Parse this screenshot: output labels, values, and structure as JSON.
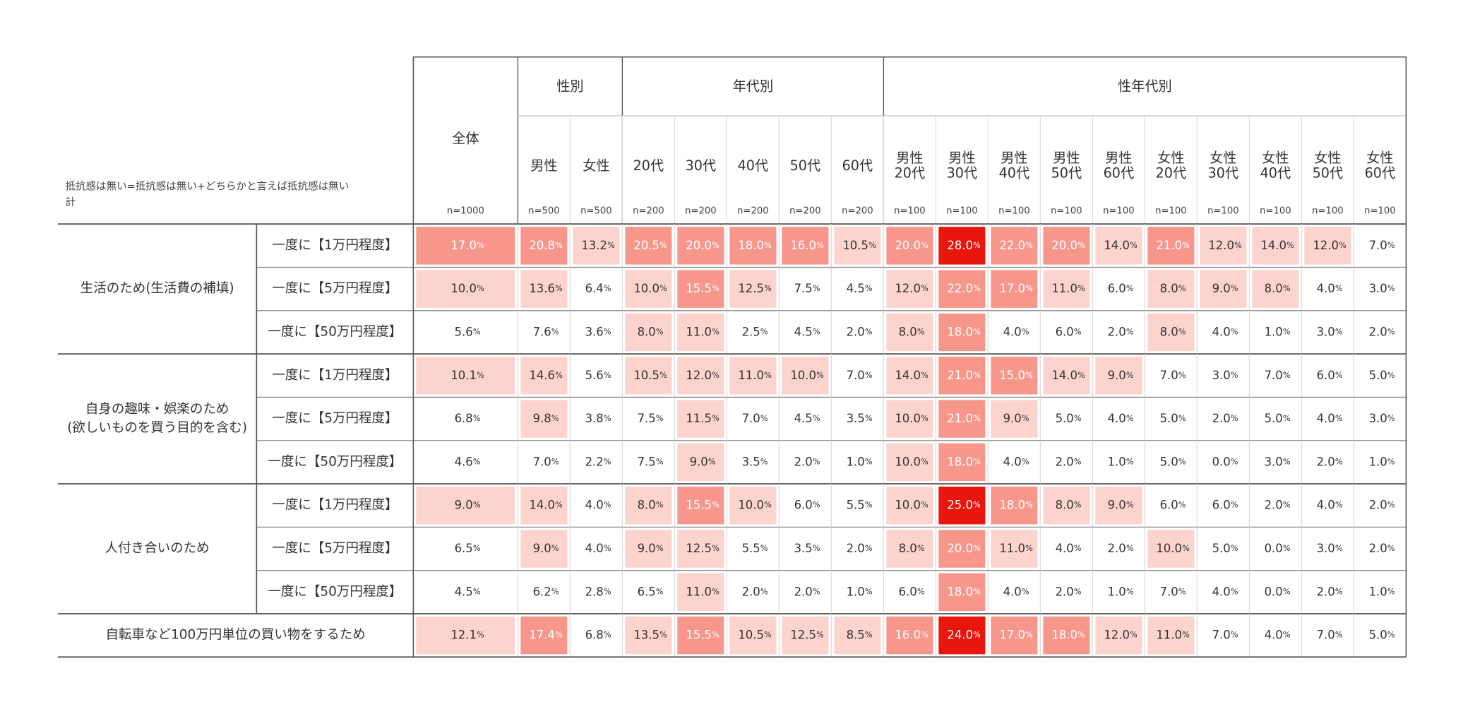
{
  "note": [
    "抵抗感は無い=抵抗感は無い+どちらかと言えば抵抗感は無い",
    "計"
  ],
  "unit": "%",
  "total": {
    "label": [
      "全体"
    ],
    "n": "n=1000"
  },
  "groups": [
    {
      "label": "性別",
      "columns": [
        {
          "label": [
            "男性"
          ],
          "n": "n=500"
        },
        {
          "label": [
            "女性"
          ],
          "n": "n=500"
        }
      ]
    },
    {
      "label": "年代別",
      "columns": [
        {
          "label": [
            "20代"
          ],
          "n": "n=200"
        },
        {
          "label": [
            "30代"
          ],
          "n": "n=200"
        },
        {
          "label": [
            "40代"
          ],
          "n": "n=200"
        },
        {
          "label": [
            "50代"
          ],
          "n": "n=200"
        },
        {
          "label": [
            "60代"
          ],
          "n": "n=200"
        }
      ]
    },
    {
      "label": "性年代別",
      "columns": [
        {
          "label": [
            "男性",
            "20代"
          ],
          "n": "n=100"
        },
        {
          "label": [
            "男性",
            "30代"
          ],
          "n": "n=100"
        },
        {
          "label": [
            "男性",
            "40代"
          ],
          "n": "n=100"
        },
        {
          "label": [
            "男性",
            "50代"
          ],
          "n": "n=100"
        },
        {
          "label": [
            "男性",
            "60代"
          ],
          "n": "n=100"
        },
        {
          "label": [
            "女性",
            "20代"
          ],
          "n": "n=100"
        },
        {
          "label": [
            "女性",
            "30代"
          ],
          "n": "n=100"
        },
        {
          "label": [
            "女性",
            "40代"
          ],
          "n": "n=100"
        },
        {
          "label": [
            "女性",
            "50代"
          ],
          "n": "n=100"
        },
        {
          "label": [
            "女性",
            "60代"
          ],
          "n": "n=100"
        }
      ]
    }
  ],
  "sections": [
    {
      "label": [
        "生活のため(生活費の補填)"
      ],
      "rows": [
        {
          "label": "一度に【1万円程度】",
          "values": [
            "17.0",
            "20.8",
            "13.2",
            "20.5",
            "20.0",
            "18.0",
            "16.0",
            "10.5",
            "20.0",
            "28.0",
            "22.0",
            "20.0",
            "14.0",
            "21.0",
            "12.0",
            "14.0",
            "12.0",
            "7.0"
          ]
        },
        {
          "label": "一度に【5万円程度】",
          "values": [
            "10.0",
            "13.6",
            "6.4",
            "10.0",
            "15.5",
            "12.5",
            "7.5",
            "4.5",
            "12.0",
            "22.0",
            "17.0",
            "11.0",
            "6.0",
            "8.0",
            "9.0",
            "8.0",
            "4.0",
            "3.0"
          ]
        },
        {
          "label": "一度に【50万円程度】",
          "values": [
            "5.6",
            "7.6",
            "3.6",
            "8.0",
            "11.0",
            "2.5",
            "4.5",
            "2.0",
            "8.0",
            "18.0",
            "4.0",
            "6.0",
            "2.0",
            "8.0",
            "4.0",
            "1.0",
            "3.0",
            "2.0"
          ]
        }
      ]
    },
    {
      "label": [
        "自身の趣味・娯楽のため",
        "(欲しいものを買う目的を含む)"
      ],
      "rows": [
        {
          "label": "一度に【1万円程度】",
          "values": [
            "10.1",
            "14.6",
            "5.6",
            "10.5",
            "12.0",
            "11.0",
            "10.0",
            "7.0",
            "14.0",
            "21.0",
            "15.0",
            "14.0",
            "9.0",
            "7.0",
            "3.0",
            "7.0",
            "6.0",
            "5.0"
          ]
        },
        {
          "label": "一度に【5万円程度】",
          "values": [
            "6.8",
            "9.8",
            "3.8",
            "7.5",
            "11.5",
            "7.0",
            "4.5",
            "3.5",
            "10.0",
            "21.0",
            "9.0",
            "5.0",
            "4.0",
            "5.0",
            "2.0",
            "5.0",
            "4.0",
            "3.0"
          ]
        },
        {
          "label": "一度に【50万円程度】",
          "values": [
            "4.6",
            "7.0",
            "2.2",
            "7.5",
            "9.0",
            "3.5",
            "2.0",
            "1.0",
            "10.0",
            "18.0",
            "4.0",
            "2.0",
            "1.0",
            "5.0",
            "0.0",
            "3.0",
            "2.0",
            "1.0"
          ]
        }
      ]
    },
    {
      "label": [
        "人付き合いのため"
      ],
      "rows": [
        {
          "label": "一度に【1万円程度】",
          "values": [
            "9.0",
            "14.0",
            "4.0",
            "8.0",
            "15.5",
            "10.0",
            "6.0",
            "5.5",
            "10.0",
            "25.0",
            "18.0",
            "8.0",
            "9.0",
            "6.0",
            "6.0",
            "2.0",
            "4.0",
            "2.0"
          ]
        },
        {
          "label": "一度に【5万円程度】",
          "values": [
            "6.5",
            "9.0",
            "4.0",
            "9.0",
            "12.5",
            "5.5",
            "3.5",
            "2.0",
            "8.0",
            "20.0",
            "11.0",
            "4.0",
            "2.0",
            "10.0",
            "5.0",
            "0.0",
            "3.0",
            "2.0"
          ]
        },
        {
          "label": "一度に【50万円程度】",
          "values": [
            "4.5",
            "6.2",
            "2.8",
            "6.5",
            "11.0",
            "2.0",
            "2.0",
            "1.0",
            "6.0",
            "18.0",
            "4.0",
            "2.0",
            "1.0",
            "7.0",
            "4.0",
            "0.0",
            "2.0",
            "1.0"
          ]
        }
      ]
    },
    {
      "label": [
        "自転車など100万円単位の買い物をするため"
      ],
      "rows": [
        {
          "values": [
            "12.1",
            "17.4",
            "6.8",
            "13.5",
            "15.5",
            "10.5",
            "12.5",
            "8.5",
            "16.0",
            "24.0",
            "17.0",
            "18.0",
            "12.0",
            "11.0",
            "7.0",
            "4.0",
            "7.0",
            "5.0"
          ]
        }
      ]
    }
  ]
}
